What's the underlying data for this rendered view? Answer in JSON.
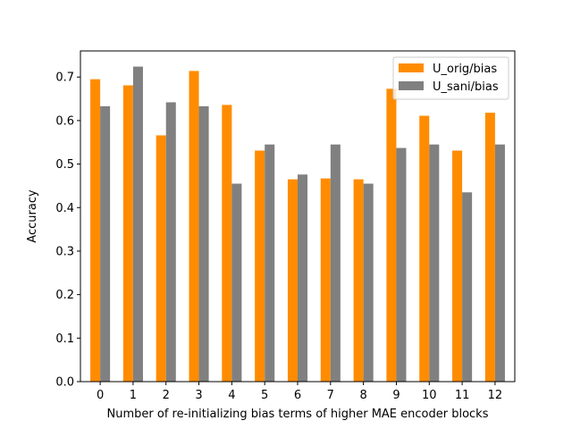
{
  "chart_data": {
    "type": "bar",
    "xlabel": "Number of re-initializing bias terms of higher MAE encoder blocks",
    "ylabel": "Accuracy",
    "categories": [
      "0",
      "1",
      "2",
      "3",
      "4",
      "5",
      "6",
      "7",
      "8",
      "9",
      "10",
      "11",
      "12"
    ],
    "ylim": [
      0,
      0.76
    ],
    "yticks": [
      0.0,
      0.1,
      0.2,
      0.3,
      0.4,
      0.5,
      0.6,
      0.7
    ],
    "ytick_labels": [
      "0.0",
      "0.1",
      "0.2",
      "0.3",
      "0.4",
      "0.5",
      "0.6",
      "0.7"
    ],
    "grid": false,
    "legend_position": "top-right",
    "series": [
      {
        "name": "U_orig/bias",
        "color": "#ff8c00",
        "values": [
          0.695,
          0.681,
          0.566,
          0.714,
          0.636,
          0.531,
          0.465,
          0.467,
          0.465,
          0.673,
          0.611,
          0.531,
          0.618
        ]
      },
      {
        "name": "U_sani/bias",
        "color": "#808080",
        "values": [
          0.633,
          0.724,
          0.642,
          0.633,
          0.455,
          0.545,
          0.476,
          0.545,
          0.455,
          0.537,
          0.545,
          0.435,
          0.545
        ]
      }
    ]
  }
}
